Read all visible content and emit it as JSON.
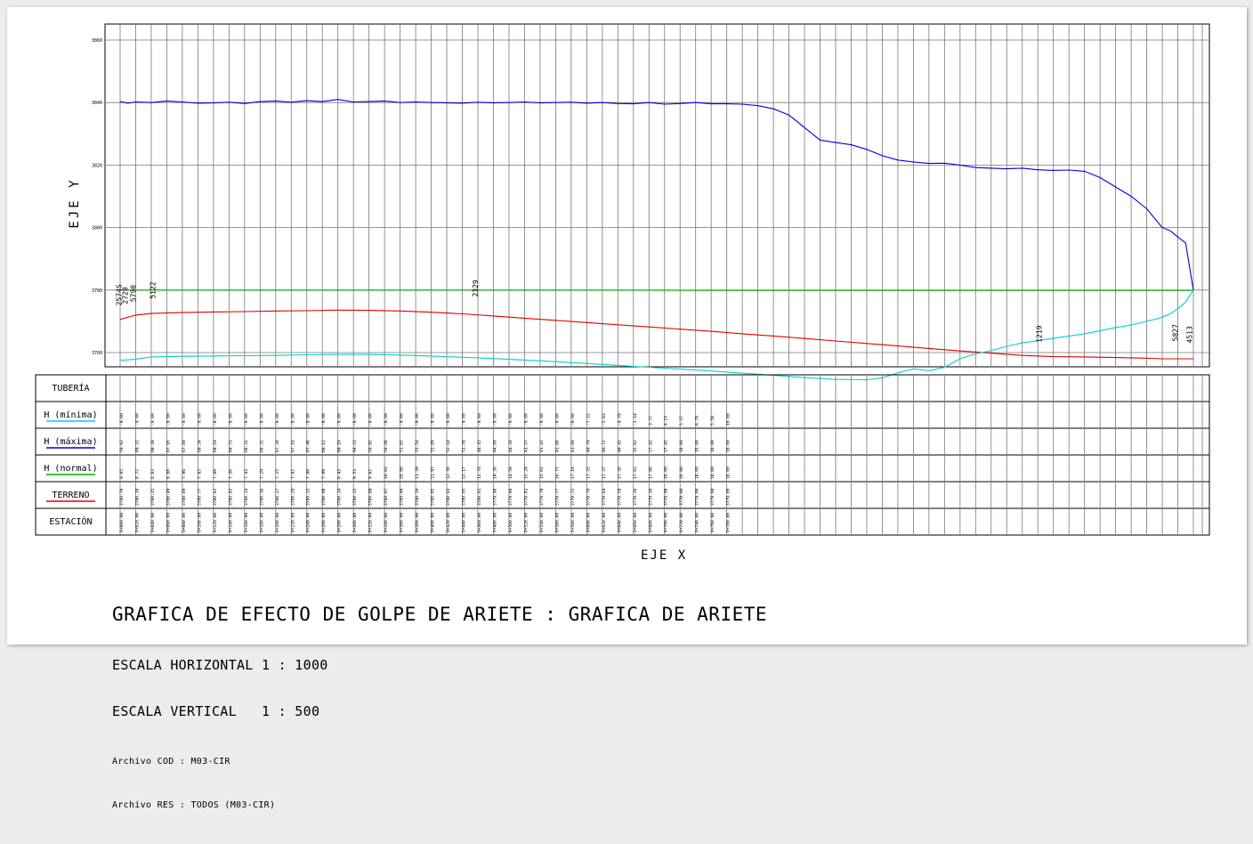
{
  "chart_data": {
    "type": "line",
    "title": "GRAFICA DE EFECTO DE GOLPE DE ARIETE : GRAFICA DE ARIETE",
    "xlabel": "EJE X",
    "ylabel": "EJE Y",
    "y_ticks": [
      "3760",
      "3780",
      "3800",
      "3820",
      "3840",
      "3860"
    ],
    "ylim": [
      3760,
      3870
    ],
    "grid": true,
    "x_stations": [
      0,
      20,
      40,
      60,
      80,
      100,
      120,
      140,
      160,
      180,
      200,
      220,
      240,
      260,
      280,
      300,
      320,
      340,
      360,
      380,
      400,
      420,
      440,
      460,
      480,
      500,
      520,
      540,
      560,
      580,
      600,
      620,
      640,
      660,
      680,
      700,
      720,
      740,
      760,
      780,
      800,
      820,
      840,
      860,
      880,
      900,
      920,
      940,
      960,
      980,
      1000,
      1020,
      1040,
      1060,
      1080,
      1100,
      1120,
      1140,
      1160,
      1180,
      1200,
      1220,
      1240,
      1260,
      1280,
      1300,
      1320,
      1340,
      1360,
      1380
    ],
    "series": [
      {
        "name": "H (máxima)",
        "color": "#0000dd",
        "x": [
          0,
          10,
          20,
          40,
          60,
          80,
          100,
          120,
          140,
          160,
          180,
          200,
          220,
          240,
          260,
          280,
          300,
          320,
          340,
          360,
          380,
          400,
          420,
          440,
          460,
          480,
          500,
          520,
          540,
          560,
          580,
          600,
          620,
          640,
          660,
          680,
          700,
          720,
          740,
          760,
          780,
          800,
          820,
          840,
          860,
          880,
          900,
          920,
          940,
          960,
          980,
          1000,
          1020,
          1040,
          1060,
          1080,
          1100,
          1120,
          1140,
          1160,
          1180,
          1200,
          1220,
          1240,
          1260,
          1280,
          1300,
          1320,
          1340,
          1350,
          1360,
          1370,
          1380
        ],
        "y": [
          3840.3,
          3839.8,
          3840.2,
          3840.0,
          3840.5,
          3840.2,
          3839.8,
          3839.9,
          3840.1,
          3839.7,
          3840.3,
          3840.5,
          3840.1,
          3840.6,
          3840.3,
          3841.0,
          3840.2,
          3840.3,
          3840.5,
          3840.0,
          3840.2,
          3840.0,
          3839.9,
          3839.8,
          3840.1,
          3839.9,
          3840.0,
          3840.2,
          3839.9,
          3840.0,
          3840.1,
          3839.8,
          3840.0,
          3839.7,
          3839.6,
          3840.0,
          3839.5,
          3839.7,
          3840.0,
          3839.6,
          3839.6,
          3839.5,
          3839.0,
          3838.0,
          3836.0,
          3832.0,
          3828.0,
          3827.2,
          3826.5,
          3825.0,
          3823.0,
          3821.6,
          3821.0,
          3820.5,
          3820.6,
          3820.0,
          3819.2,
          3819.0,
          3818.8,
          3819.0,
          3818.5,
          3818.3,
          3818.4,
          3818.0,
          3816.0,
          3813.0,
          3810.0,
          3806.0,
          3800.0,
          3799.0,
          3797.0,
          3795.0,
          3780.0
        ]
      },
      {
        "name": "H (normal)",
        "color": "#00b000",
        "x": [
          0,
          200,
          400,
          600,
          800,
          1000,
          1200,
          1380
        ],
        "y": [
          3780.0,
          3780.0,
          3780.0,
          3780.0,
          3779.9,
          3779.9,
          3779.9,
          3779.9
        ]
      },
      {
        "name": "TERRENO",
        "color": "#e00000",
        "x": [
          0,
          20,
          40,
          80,
          120,
          160,
          200,
          240,
          280,
          320,
          360,
          400,
          440,
          480,
          520,
          560,
          600,
          640,
          680,
          720,
          760,
          800,
          840,
          880,
          920,
          960,
          1000,
          1040,
          1080,
          1120,
          1160,
          1200,
          1240,
          1280,
          1320,
          1340,
          1360,
          1380
        ],
        "y": [
          3770.6,
          3772.0,
          3772.5,
          3772.8,
          3773.0,
          3773.1,
          3773.3,
          3773.4,
          3773.6,
          3773.5,
          3773.3,
          3772.9,
          3772.4,
          3771.7,
          3771.0,
          3770.3,
          3769.6,
          3768.9,
          3768.2,
          3767.5,
          3766.8,
          3766.0,
          3765.3,
          3764.5,
          3763.7,
          3762.9,
          3762.1,
          3761.3,
          3760.5,
          3759.8,
          3759.1,
          3758.7,
          3758.6,
          3758.4,
          3758.2,
          3758.0,
          3758.0,
          3758.0
        ]
      },
      {
        "name": "H (mínima)",
        "color": "#00d0d0",
        "x": [
          0,
          20,
          40,
          80,
          120,
          160,
          200,
          240,
          280,
          320,
          360,
          400,
          440,
          480,
          520,
          560,
          600,
          640,
          680,
          720,
          760,
          800,
          840,
          880,
          920,
          960,
          980,
          1000,
          1020,
          1040,
          1060,
          1080,
          1100,
          1120,
          1140,
          1160,
          1180,
          1200,
          1220,
          1240,
          1260,
          1280,
          1300,
          1320,
          1330,
          1340,
          1350,
          1360,
          1370,
          1380
        ],
        "y": [
          3757.5,
          3757.9,
          3758.6,
          3758.8,
          3758.9,
          3759.0,
          3759.1,
          3759.3,
          3759.4,
          3759.4,
          3759.2,
          3758.9,
          3758.5,
          3758.1,
          3757.6,
          3757.1,
          3756.5,
          3755.9,
          3755.3,
          3754.7,
          3754.1,
          3753.4,
          3752.7,
          3752.0,
          3751.4,
          3751.3,
          3751.9,
          3753.5,
          3754.8,
          3754.2,
          3755.3,
          3758.0,
          3759.6,
          3760.6,
          3762.0,
          3763.1,
          3763.8,
          3764.6,
          3765.3,
          3766.0,
          3767.0,
          3768.0,
          3768.8,
          3770.0,
          3770.6,
          3771.3,
          3772.4,
          3774.0,
          3776.2,
          3780.0
        ]
      }
    ],
    "point_labels": [
      {
        "x": 2,
        "y": 3775.0,
        "text": "2574S"
      },
      {
        "x": 10,
        "y": 3775.5,
        "text": "2720"
      },
      {
        "x": 20,
        "y": 3776.2,
        "text": "5790"
      },
      {
        "x": 45,
        "y": 3777.2,
        "text": "5122"
      },
      {
        "x": 460,
        "y": 3777.8,
        "text": "2329"
      },
      {
        "x": 1185,
        "y": 3763.2,
        "text": "1219"
      },
      {
        "x": 1360,
        "y": 3763.6,
        "text": "5827"
      },
      {
        "x": 1378,
        "y": 3763.0,
        "text": "4513"
      }
    ],
    "profile_rows": [
      {
        "label": "TUBERÍA",
        "underline": null,
        "values": []
      },
      {
        "label": "H (mínima)",
        "underline": "#00c8ff",
        "values": [
          "-9.00",
          "-9.00",
          "-9.00",
          "-9.00",
          "-9.00",
          "-9.00",
          "-9.00",
          "-9.00",
          "-9.00",
          "-9.00",
          "-9.00",
          "-9.00",
          "-9.00",
          "-9.00",
          "-9.00",
          "-9.00",
          "-9.00",
          "-9.00",
          "-9.00",
          "-9.00",
          "-9.00",
          "-9.00",
          "-9.00",
          "-9.00",
          "-9.00",
          "-9.00",
          "-9.00",
          "-9.00",
          "-9.00",
          "-9.00",
          "-7.52",
          "-5.63",
          "-4.79",
          "-2.14",
          "3.77",
          "4.13",
          "5.17",
          "6.78",
          "5.50",
          "10.00"
        ]
      },
      {
        "label": "H (máxima)",
        "underline": "#0000dd",
        "values": [
          "50.92",
          "69.31",
          "69.39",
          "67.95",
          "67.89",
          "69.34",
          "69.19",
          "69.71",
          "68.31",
          "68.31",
          "67.20",
          "67.18",
          "67.46",
          "68.12",
          "69.10",
          "69.23",
          "50.92",
          "50.86",
          "51.63",
          "51.54",
          "53.09",
          "52.14",
          "51.59",
          "48.45",
          "44.89",
          "44.30",
          "41.57",
          "41.42",
          "41.68",
          "41.80",
          "40.79",
          "40.72",
          "40.45",
          "35.63",
          "27.42",
          "27.42",
          "18.00",
          "18.00",
          "18.00",
          "18.00"
        ]
      },
      {
        "label": "H (normal)",
        "underline": "#00b000",
        "values": [
          "9.05",
          "8.72",
          "8.83",
          "8.88",
          "7.96",
          "7.83",
          "7.69",
          "7.56",
          "7.43",
          "7.29",
          "7.15",
          "7.02",
          "7.06",
          "7.09",
          "8.43",
          "9.53",
          "9.62",
          "10.02",
          "10.90",
          "11.39",
          "11.97",
          "12.56",
          "13.17",
          "13.76",
          "14.36",
          "14.59",
          "15.29",
          "15.61",
          "16.75",
          "17.16",
          "17.25",
          "17.37",
          "17.58",
          "17.62",
          "17.86",
          "18.00",
          "18.00",
          "18.00",
          "18.00",
          "18.00"
        ]
      },
      {
        "label": "TERRENO",
        "underline": "#e00000",
        "values": [
          "3780.70",
          "3780.18",
          "3780.35",
          "3780.49",
          "3780.89",
          "3780.77",
          "3780.82",
          "3780.82",
          "3780.24",
          "3780.16",
          "3780.27",
          "3780.29",
          "3780.12",
          "3780.08",
          "3780.14",
          "3780.13",
          "3780.69",
          "3780.67",
          "3780.46",
          "3780.20",
          "3780.05",
          "3780.03",
          "3780.05",
          "3780.01",
          "3779.98",
          "3779.90",
          "3779.81",
          "3779.79",
          "3779.77",
          "3779.72",
          "3779.70",
          "3779.64",
          "3779.59",
          "3779.36",
          "3779.10",
          "3779.06",
          "3779.00",
          "3779.00",
          "3779.00",
          "3779.00"
        ]
      },
      {
        "label": "ESTACIÓN",
        "underline": null,
        "values": [
          "0+000.00",
          "0+020.00",
          "0+040.00",
          "0+060.00",
          "0+080.00",
          "0+100.00",
          "0+120.00",
          "0+140.00",
          "0+160.00",
          "0+180.00",
          "0+200.00",
          "0+220.00",
          "0+240.00",
          "0+260.00",
          "0+280.00",
          "0+300.00",
          "0+320.00",
          "0+340.00",
          "0+360.00",
          "0+380.00",
          "0+400.00",
          "0+420.00",
          "0+440.00",
          "0+460.00",
          "0+480.00",
          "0+500.00",
          "0+520.00",
          "0+540.00",
          "0+560.00",
          "0+580.00",
          "0+600.00",
          "0+620.00",
          "0+640.00",
          "0+660.00",
          "0+680.00",
          "0+700.00",
          "0+720.00",
          "0+740.00",
          "0+760.00",
          "0+780.00"
        ]
      }
    ],
    "scale_horizontal": "ESCALA HORIZONTAL 1 : 1000",
    "scale_vertical": "ESCALA VERTICAL   1 : 500",
    "file_cod": "Archivo COD : M03-CIR",
    "file_res": "Archivo RES : TODOS (M03-CIR)"
  }
}
